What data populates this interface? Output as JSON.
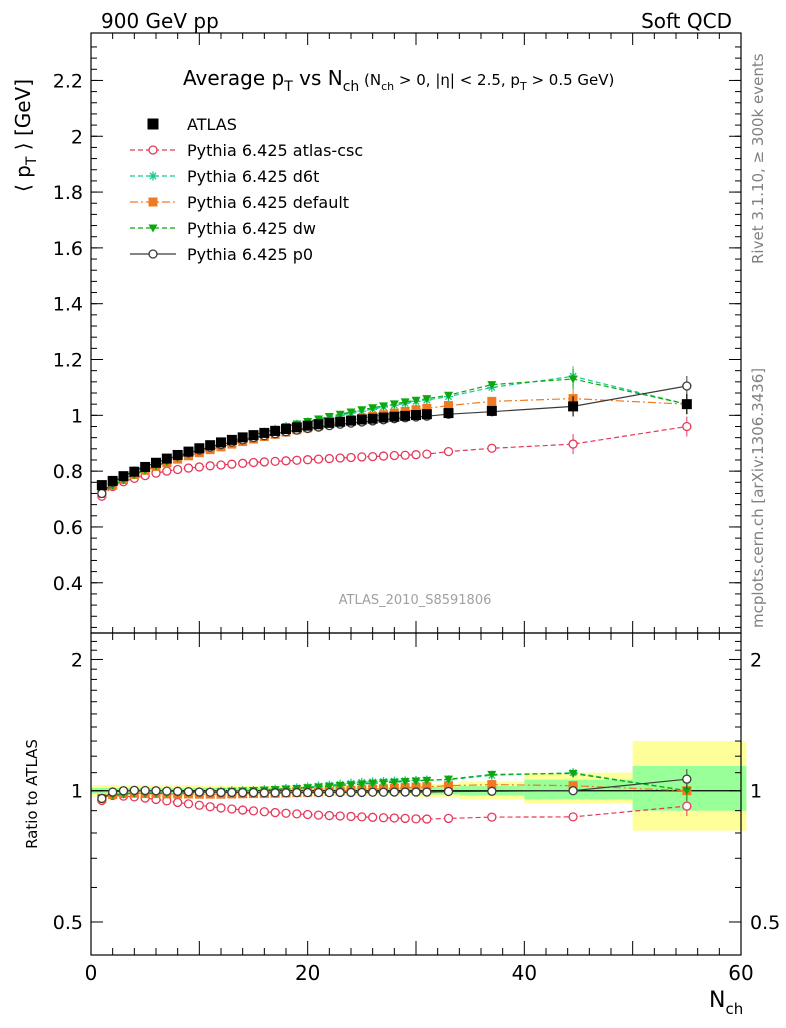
{
  "header": {
    "left": "900 GeV pp",
    "right": "Soft QCD"
  },
  "side_text": {
    "rivet": "Rivet 3.1.10, ≥ 300k events",
    "mcplots": "mcplots.cern.ch [arXiv:1306.3436]"
  },
  "watermark": "ATLAS_2010_S8591806",
  "colors": {
    "atlas": "#000000",
    "atlas_csc": "#e8375a",
    "d6t": "#16c98b",
    "default": "#f07a22",
    "dw": "#0ea80e",
    "p0": "#3a3a3a",
    "band_outer": "#ffff99",
    "band_inner": "#99ff99"
  },
  "chart_data": [
    {
      "type": "line",
      "panel": "main",
      "title": "Average p_T vs N_ch",
      "title_parts": {
        "a": "Average p",
        "a_sub": "T",
        "b": " vs N",
        "b_sub": "ch",
        "cut_open": " (N",
        "cut_open_sub": "ch",
        "cut_mid": " > 0, |η| < 2.5, p",
        "cut_mid_sub": "T",
        "cut_close": " > 0.5 GeV)"
      },
      "ylabel": "⟨ p_T ⟩ [GeV]",
      "ylabel_parts": {
        "pre": "⟨ p",
        "sub": "T",
        "post": " ⟩ [GeV]"
      },
      "xlabel": "N_ch",
      "xlim": [
        0,
        60
      ],
      "ylim": [
        0.22,
        2.37
      ],
      "yticks": [
        0.4,
        0.6,
        0.8,
        1,
        1.2,
        1.4,
        1.6,
        1.8,
        2,
        2.2
      ],
      "ytick_labels": [
        "0.4",
        "0.6",
        "0.8",
        "1",
        "1.2",
        "1.4",
        "1.6",
        "1.8",
        "2",
        "2.2"
      ],
      "legend_position": "top-left",
      "x": [
        1,
        2,
        3,
        4,
        5,
        6,
        7,
        8,
        9,
        10,
        11,
        12,
        13,
        14,
        15,
        16,
        17,
        18,
        19,
        20,
        21,
        22,
        23,
        24,
        25,
        26,
        27,
        28,
        29,
        30,
        31,
        33,
        37,
        44.5,
        55
      ],
      "series": [
        {
          "name": "ATLAS",
          "key": "atlas",
          "marker": "filled-square",
          "line": "none",
          "values": [
            0.75,
            0.765,
            0.782,
            0.798,
            0.815,
            0.83,
            0.845,
            0.858,
            0.87,
            0.882,
            0.893,
            0.903,
            0.912,
            0.921,
            0.929,
            0.937,
            0.944,
            0.951,
            0.957,
            0.963,
            0.968,
            0.973,
            0.977,
            0.981,
            0.985,
            0.988,
            0.992,
            0.995,
            0.998,
            1.001,
            1.004,
            1.008,
            1.016,
            1.032,
            1.04
          ]
        },
        {
          "name": "Pythia 6.425 atlas-csc",
          "key": "atlas_csc",
          "marker": "open-circle",
          "line": "dashed",
          "values": [
            0.71,
            0.745,
            0.762,
            0.774,
            0.784,
            0.793,
            0.8,
            0.806,
            0.811,
            0.815,
            0.819,
            0.822,
            0.825,
            0.828,
            0.831,
            0.833,
            0.835,
            0.837,
            0.839,
            0.841,
            0.843,
            0.845,
            0.847,
            0.849,
            0.851,
            0.852,
            0.854,
            0.856,
            0.857,
            0.859,
            0.861,
            0.87,
            0.882,
            0.897,
            0.96
          ]
        },
        {
          "name": "Pythia 6.425 d6t",
          "key": "d6t",
          "marker": "star",
          "line": "dashed",
          "values": [
            0.72,
            0.75,
            0.77,
            0.79,
            0.805,
            0.82,
            0.835,
            0.85,
            0.862,
            0.875,
            0.887,
            0.898,
            0.91,
            0.92,
            0.93,
            0.94,
            0.95,
            0.96,
            0.968,
            0.976,
            0.984,
            0.992,
            1.0,
            1.008,
            1.015,
            1.022,
            1.03,
            1.036,
            1.043,
            1.05,
            1.055,
            1.067,
            1.1,
            1.14,
            1.04
          ]
        },
        {
          "name": "Pythia 6.425 default",
          "key": "default",
          "marker": "filled-square",
          "line": "dashdot",
          "values": [
            0.72,
            0.75,
            0.77,
            0.788,
            0.803,
            0.817,
            0.83,
            0.843,
            0.855,
            0.866,
            0.877,
            0.887,
            0.897,
            0.906,
            0.915,
            0.924,
            0.932,
            0.94,
            0.948,
            0.955,
            0.962,
            0.969,
            0.976,
            0.983,
            0.99,
            0.996,
            1.002,
            1.008,
            1.014,
            1.02,
            1.025,
            1.035,
            1.05,
            1.06,
            1.04
          ]
        },
        {
          "name": "Pythia 6.425 dw",
          "key": "dw",
          "marker": "filled-triangle-down",
          "line": "dashed",
          "values": [
            0.72,
            0.748,
            0.768,
            0.787,
            0.803,
            0.818,
            0.833,
            0.848,
            0.861,
            0.874,
            0.886,
            0.898,
            0.909,
            0.92,
            0.93,
            0.94,
            0.95,
            0.96,
            0.969,
            0.978,
            0.987,
            0.996,
            1.004,
            1.012,
            1.02,
            1.027,
            1.034,
            1.041,
            1.048,
            1.054,
            1.06,
            1.072,
            1.11,
            1.13,
            1.04
          ]
        },
        {
          "name": "Pythia 6.425 p0",
          "key": "p0",
          "marker": "open-circle",
          "line": "solid",
          "values": [
            0.72,
            0.76,
            0.782,
            0.8,
            0.816,
            0.83,
            0.843,
            0.855,
            0.866,
            0.876,
            0.886,
            0.895,
            0.904,
            0.912,
            0.92,
            0.927,
            0.934,
            0.941,
            0.947,
            0.953,
            0.958,
            0.963,
            0.968,
            0.972,
            0.976,
            0.98,
            0.984,
            0.988,
            0.991,
            0.994,
            0.997,
            1.004,
            1.013,
            1.032,
            1.105
          ]
        }
      ]
    },
    {
      "type": "line",
      "panel": "ratio",
      "ylabel": "Ratio to ATLAS",
      "xlabel": "N_ch",
      "xlabel_parts": {
        "pre": "N",
        "sub": "ch"
      },
      "xlim": [
        0,
        60
      ],
      "ylim": [
        0.42,
        2.3
      ],
      "y_scale": "log",
      "yticks": [
        0.5,
        1,
        2
      ],
      "ytick_labels": [
        "0.5",
        "1",
        "2"
      ],
      "xticks": [
        0,
        20,
        40,
        60
      ],
      "xtick_labels": [
        "0",
        "20",
        "40",
        "60"
      ],
      "uncertainty_bands": [
        {
          "x_range": [
            0,
            10
          ],
          "outer": [
            0.97,
            1.03
          ],
          "inner": [
            0.985,
            1.015
          ]
        },
        {
          "x_range": [
            10,
            20
          ],
          "outer": [
            0.975,
            1.025
          ],
          "inner": [
            0.985,
            1.015
          ]
        },
        {
          "x_range": [
            20,
            30
          ],
          "outer": [
            0.975,
            1.025
          ],
          "inner": [
            0.985,
            1.015
          ]
        },
        {
          "x_range": [
            30,
            34
          ],
          "outer": [
            0.965,
            1.035
          ],
          "inner": [
            0.98,
            1.02
          ]
        },
        {
          "x_range": [
            34,
            40
          ],
          "outer": [
            0.955,
            1.05
          ],
          "inner": [
            0.975,
            1.025
          ]
        },
        {
          "x_range": [
            40,
            50
          ],
          "outer": [
            0.935,
            1.1
          ],
          "inner": [
            0.955,
            1.06
          ]
        },
        {
          "x_range": [
            50,
            60.5
          ],
          "outer": [
            0.81,
            1.3
          ],
          "inner": [
            0.9,
            1.14
          ]
        }
      ],
      "x": [
        1,
        2,
        3,
        4,
        5,
        6,
        7,
        8,
        9,
        10,
        11,
        12,
        13,
        14,
        15,
        16,
        17,
        18,
        19,
        20,
        21,
        22,
        23,
        24,
        25,
        26,
        27,
        28,
        29,
        30,
        31,
        33,
        37,
        44.5,
        55
      ],
      "series": [
        {
          "name": "Pythia 6.425 atlas-csc",
          "key": "atlas_csc",
          "marker": "open-circle",
          "line": "dashed",
          "values": [
            0.95,
            0.975,
            0.972,
            0.968,
            0.962,
            0.955,
            0.948,
            0.94,
            0.933,
            0.926,
            0.919,
            0.913,
            0.908,
            0.903,
            0.899,
            0.895,
            0.891,
            0.888,
            0.885,
            0.882,
            0.879,
            0.877,
            0.875,
            0.873,
            0.871,
            0.869,
            0.867,
            0.866,
            0.864,
            0.862,
            0.861,
            0.864,
            0.87,
            0.871,
            0.922
          ]
        },
        {
          "name": "Pythia 6.425 d6t",
          "key": "d6t",
          "marker": "star",
          "line": "dashed",
          "values": [
            0.96,
            0.98,
            0.985,
            0.99,
            0.988,
            0.99,
            0.99,
            0.993,
            0.992,
            0.994,
            0.995,
            0.998,
            1.0,
            1.0,
            1.002,
            1.005,
            1.008,
            1.012,
            1.015,
            1.02,
            1.025,
            1.03,
            1.035,
            1.04,
            1.045,
            1.048,
            1.05,
            1.052,
            1.054,
            1.056,
            1.058,
            1.06,
            1.085,
            1.1,
            1.0
          ]
        },
        {
          "name": "Pythia 6.425 default",
          "key": "default",
          "marker": "filled-square",
          "line": "dashdot",
          "values": [
            0.96,
            0.98,
            0.985,
            0.987,
            0.985,
            0.985,
            0.983,
            0.983,
            0.983,
            0.982,
            0.982,
            0.982,
            0.983,
            0.984,
            0.985,
            0.986,
            0.987,
            0.988,
            0.99,
            0.992,
            0.994,
            0.996,
            0.999,
            1.002,
            1.005,
            1.008,
            1.01,
            1.013,
            1.016,
            1.019,
            1.021,
            1.027,
            1.033,
            1.027,
            1.0
          ]
        },
        {
          "name": "Pythia 6.425 dw",
          "key": "dw",
          "marker": "filled-triangle-down",
          "line": "dashed",
          "values": [
            0.96,
            0.978,
            0.982,
            0.986,
            0.985,
            0.986,
            0.986,
            0.988,
            0.99,
            0.991,
            0.992,
            0.994,
            0.997,
            0.999,
            1.001,
            1.003,
            1.006,
            1.009,
            1.012,
            1.016,
            1.02,
            1.024,
            1.028,
            1.032,
            1.036,
            1.04,
            1.043,
            1.046,
            1.05,
            1.053,
            1.056,
            1.063,
            1.09,
            1.095,
            1.0
          ]
        },
        {
          "name": "Pythia 6.425 p0",
          "key": "p0",
          "marker": "open-circle",
          "line": "solid",
          "values": [
            0.96,
            0.993,
            1.0,
            1.002,
            1.001,
            1.0,
            0.998,
            0.997,
            0.995,
            0.993,
            0.992,
            0.991,
            0.991,
            0.99,
            0.99,
            0.989,
            0.989,
            0.989,
            0.99,
            0.99,
            0.99,
            0.99,
            0.991,
            0.991,
            0.991,
            0.992,
            0.992,
            0.993,
            0.993,
            0.993,
            0.993,
            0.996,
            0.997,
            1.0,
            1.063
          ]
        }
      ]
    }
  ]
}
